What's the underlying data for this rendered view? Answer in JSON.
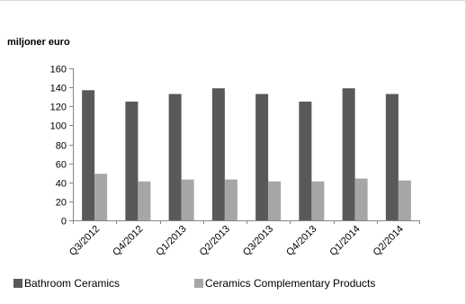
{
  "colors": {
    "border": "#d9d9d9",
    "axis": "#868686",
    "text": "#000000"
  },
  "chart_data": {
    "type": "bar",
    "title": "miljoner euro",
    "xlabel": "",
    "ylabel": "",
    "ylim": [
      0,
      160
    ],
    "yticks": [
      0,
      20,
      40,
      60,
      80,
      100,
      120,
      140,
      160
    ],
    "grid": false,
    "legend_position": "bottom",
    "categories": [
      "Q3/2012",
      "Q4/2012",
      "Q1/2013",
      "Q2/2013",
      "Q3/2013",
      "Q4/2013",
      "Q1/2014",
      "Q2/2014"
    ],
    "series": [
      {
        "name": "Bathroom Ceramics",
        "color": "#595959",
        "values": [
          137,
          125,
          133,
          139,
          133,
          125,
          139,
          133
        ]
      },
      {
        "name": "Ceramics Complementary Products",
        "color": "#a6a6a6",
        "values": [
          49,
          41,
          43,
          43,
          41,
          41,
          44,
          42
        ]
      }
    ]
  }
}
